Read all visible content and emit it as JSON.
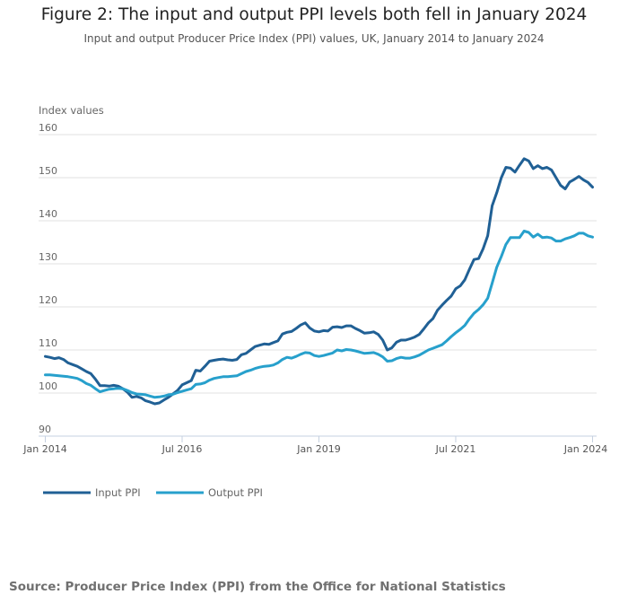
{
  "title": "Figure 2: The input and output PPI levels both fell in January 2024",
  "subtitle": "Input and output Producer Price Index (PPI) values, UK, January 2014 to January 2024",
  "source": "Source: Producer Price Index (PPI) from the Office for National Statistics",
  "chart_data": {
    "type": "line",
    "title": "Figure 2: The input and output PPI levels both fell in January 2024",
    "ylabel": "Index values",
    "xlabel": "",
    "ylim": [
      90,
      160
    ],
    "yticks": [
      "90",
      "100",
      "110",
      "120",
      "130",
      "140",
      "150",
      "160"
    ],
    "xticks": [
      {
        "label": "Jan 2014",
        "month_index": 0
      },
      {
        "label": "Jul 2016",
        "month_index": 30
      },
      {
        "label": "Jan 2019",
        "month_index": 60
      },
      {
        "label": "Jul 2021",
        "month_index": 90
      },
      {
        "label": "Jan 2024",
        "month_index": 120
      }
    ],
    "x_start": "Jan 2014",
    "x_frequency": "monthly",
    "grid": true,
    "legend_position": "bottom-left",
    "series": [
      {
        "name": "Input PPI",
        "color": "#206095",
        "values": [
          108.5,
          108.3,
          108.0,
          108.2,
          107.8,
          107.0,
          106.6,
          106.2,
          105.6,
          105.0,
          104.5,
          103.2,
          101.7,
          101.7,
          101.6,
          101.8,
          101.6,
          101.0,
          100.2,
          99.0,
          99.2,
          98.9,
          98.2,
          97.9,
          97.5,
          97.7,
          98.4,
          99.0,
          99.8,
          100.6,
          101.9,
          102.4,
          102.9,
          105.3,
          105.1,
          106.2,
          107.4,
          107.6,
          107.8,
          107.9,
          107.7,
          107.6,
          107.8,
          108.9,
          109.2,
          110.0,
          110.8,
          111.1,
          111.4,
          111.3,
          111.7,
          112.1,
          113.7,
          114.1,
          114.3,
          115.0,
          115.8,
          116.3,
          115.1,
          114.4,
          114.2,
          114.5,
          114.4,
          115.3,
          115.4,
          115.2,
          115.6,
          115.6,
          115.0,
          114.5,
          113.9,
          114.0,
          114.2,
          113.6,
          112.3,
          110.0,
          110.5,
          111.8,
          112.3,
          112.3,
          112.6,
          113.0,
          113.6,
          114.9,
          116.3,
          117.3,
          119.2,
          120.4,
          121.5,
          122.5,
          124.2,
          124.9,
          126.3,
          128.7,
          131.0,
          131.2,
          133.5,
          136.5,
          143.5,
          146.5,
          150.0,
          152.4,
          152.2,
          151.3,
          152.9,
          154.4,
          153.9,
          152.1,
          152.8,
          152.1,
          152.4,
          151.8,
          150.0,
          148.2,
          147.4,
          149.0,
          149.6,
          150.3,
          149.5,
          148.9,
          147.8
        ]
      },
      {
        "name": "Output PPI",
        "color": "#27a0cc",
        "values": [
          104.2,
          104.2,
          104.1,
          104.0,
          103.9,
          103.8,
          103.6,
          103.4,
          102.9,
          102.2,
          101.8,
          101.0,
          100.3,
          100.6,
          100.9,
          101.0,
          101.1,
          101.0,
          100.6,
          100.1,
          99.8,
          99.7,
          99.6,
          99.3,
          99.0,
          99.1,
          99.3,
          99.6,
          99.7,
          100.1,
          100.4,
          100.7,
          101.0,
          102.0,
          102.1,
          102.4,
          103.0,
          103.4,
          103.6,
          103.8,
          103.8,
          103.9,
          104.0,
          104.5,
          105.0,
          105.3,
          105.7,
          106.0,
          106.2,
          106.3,
          106.5,
          107.0,
          107.8,
          108.3,
          108.1,
          108.5,
          109.0,
          109.4,
          109.3,
          108.7,
          108.5,
          108.7,
          109.0,
          109.3,
          110.0,
          109.8,
          110.1,
          110.0,
          109.8,
          109.5,
          109.2,
          109.3,
          109.4,
          109.0,
          108.4,
          107.4,
          107.5,
          108.0,
          108.3,
          108.1,
          108.1,
          108.4,
          108.8,
          109.4,
          110.0,
          110.4,
          110.8,
          111.2,
          112.1,
          113.1,
          114.0,
          114.8,
          115.7,
          117.2,
          118.5,
          119.4,
          120.5,
          122.0,
          125.5,
          129.2,
          131.7,
          134.5,
          136.1,
          136.1,
          136.1,
          137.6,
          137.3,
          136.2,
          136.9,
          136.1,
          136.2,
          136.0,
          135.3,
          135.3,
          135.8,
          136.1,
          136.5,
          137.1,
          137.1,
          136.5,
          136.2
        ]
      }
    ]
  }
}
